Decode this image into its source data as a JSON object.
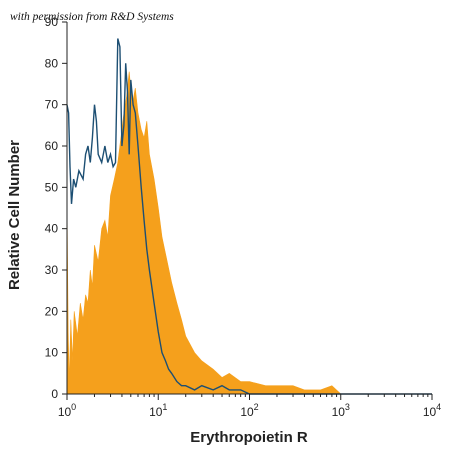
{
  "chart_data": {
    "type": "area",
    "watermark": "with permission from R&D Systems",
    "xlabel": "Erythropoietin R",
    "ylabel": "Relative Cell Number",
    "x_scale": "log",
    "xlim": [
      1,
      10000
    ],
    "ylim": [
      0,
      90
    ],
    "x_ticks": [
      {
        "base": "10",
        "exp": "0",
        "value": 1
      },
      {
        "base": "10",
        "exp": "1",
        "value": 10
      },
      {
        "base": "10",
        "exp": "2",
        "value": 100
      },
      {
        "base": "10",
        "exp": "3",
        "value": 1000
      },
      {
        "base": "10",
        "exp": "4",
        "value": 10000
      }
    ],
    "y_ticks": [
      0,
      10,
      20,
      30,
      40,
      50,
      60,
      70,
      80,
      90
    ],
    "grid": false,
    "series": [
      {
        "style": "filled",
        "color": "#f5a01c",
        "x": [
          1.0,
          1.03,
          1.06,
          1.1,
          1.15,
          1.2,
          1.3,
          1.4,
          1.5,
          1.6,
          1.7,
          1.8,
          1.9,
          2.0,
          2.2,
          2.4,
          2.6,
          2.8,
          3.0,
          3.3,
          3.6,
          3.9,
          4.2,
          4.5,
          4.8,
          5.2,
          5.6,
          6.0,
          6.5,
          7.0,
          7.5,
          8.0,
          9.0,
          10.0,
          11.0,
          12.0,
          14.0,
          16.0,
          18.0,
          20.0,
          25.0,
          30.0,
          40.0,
          50.0,
          60.0,
          80.0,
          100.0,
          150.0,
          200.0,
          300.0,
          400.0,
          600.0,
          800.0,
          1000.0,
          10000.0
        ],
        "y": [
          47,
          15,
          3,
          18,
          8,
          20,
          14,
          22,
          18,
          24,
          22,
          30,
          26,
          36,
          32,
          40,
          42,
          38,
          48,
          52,
          56,
          62,
          68,
          72,
          78,
          70,
          74,
          68,
          64,
          62,
          66,
          58,
          52,
          45,
          38,
          34,
          27,
          22,
          18,
          14,
          10,
          8,
          6,
          4,
          5,
          3,
          3,
          2,
          2,
          2,
          1,
          1,
          2,
          0,
          0
        ]
      },
      {
        "style": "outline",
        "color": "#1d4f73",
        "x": [
          1.0,
          1.04,
          1.08,
          1.12,
          1.18,
          1.25,
          1.35,
          1.5,
          1.6,
          1.7,
          1.8,
          1.9,
          2.0,
          2.1,
          2.2,
          2.4,
          2.6,
          2.8,
          3.0,
          3.2,
          3.4,
          3.6,
          3.8,
          4.0,
          4.2,
          4.4,
          4.6,
          4.8,
          5.0,
          5.3,
          5.6,
          6.0,
          6.5,
          7.0,
          7.5,
          8.0,
          9.0,
          10.0,
          11.0,
          12.0,
          13.0,
          14.0,
          16.0,
          18.0,
          20.0,
          25.0,
          30.0,
          40.0,
          50.0,
          60.0,
          80.0,
          100.0,
          200.0,
          1000.0,
          10000.0
        ],
        "y": [
          70,
          68,
          55,
          46,
          52,
          50,
          54,
          52,
          58,
          60,
          56,
          62,
          70,
          66,
          58,
          56,
          60,
          56,
          58,
          55,
          56,
          86,
          84,
          60,
          65,
          80,
          73,
          58,
          76,
          70,
          68,
          60,
          50,
          42,
          35,
          30,
          22,
          15,
          10,
          8,
          6,
          5,
          3,
          2,
          2,
          1,
          2,
          1,
          2,
          1,
          1,
          0,
          0,
          0,
          0
        ]
      }
    ]
  }
}
